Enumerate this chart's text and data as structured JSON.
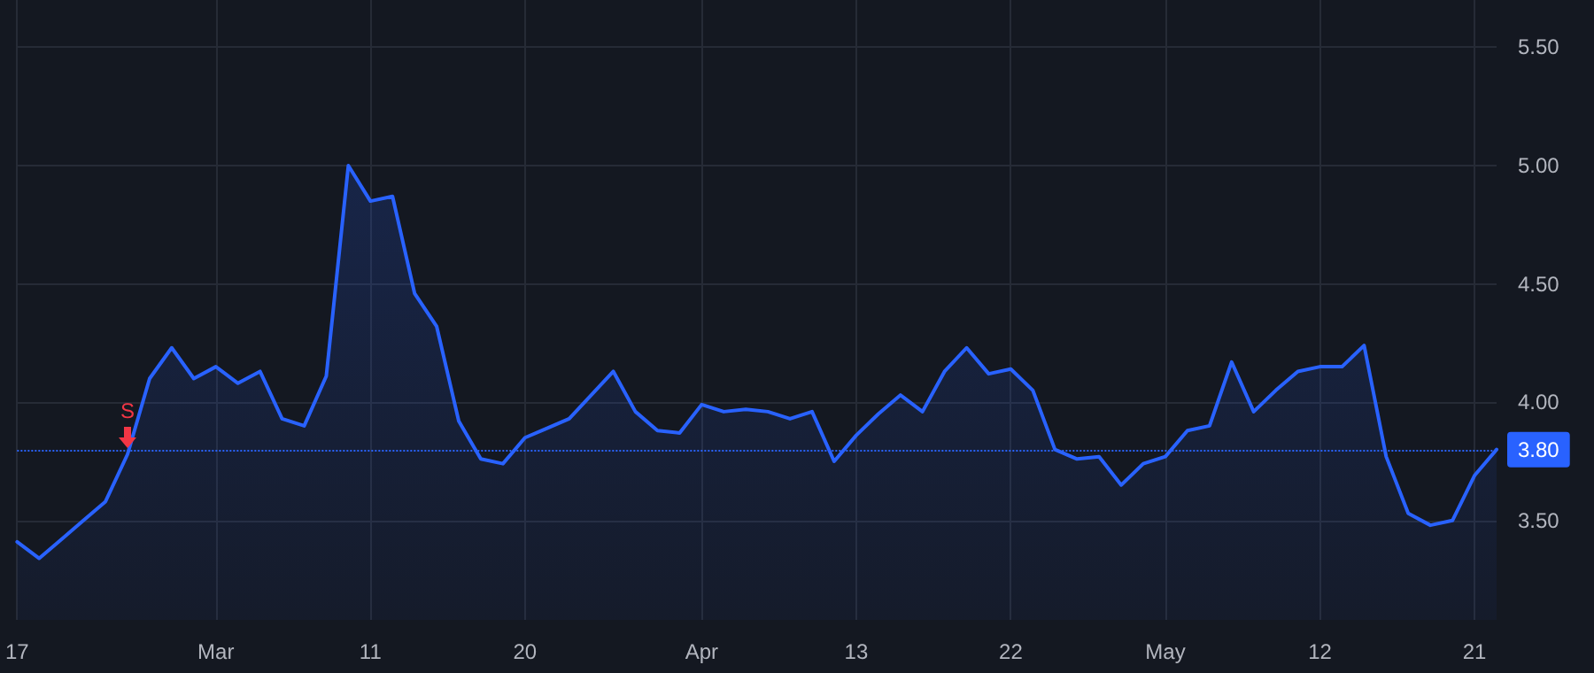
{
  "chart_data": {
    "type": "area",
    "categories": [
      "17",
      null,
      null,
      null,
      null,
      null,
      null,
      null,
      null,
      "Mar",
      null,
      null,
      null,
      null,
      null,
      null,
      "11",
      null,
      null,
      null,
      null,
      null,
      null,
      "20",
      null,
      null,
      null,
      null,
      null,
      null,
      null,
      "Apr",
      null,
      null,
      null,
      null,
      null,
      null,
      "13",
      null,
      null,
      null,
      null,
      null,
      null,
      "22",
      null,
      null,
      null,
      null,
      null,
      null,
      "May",
      null,
      null,
      null,
      null,
      null,
      null,
      "12",
      null,
      null,
      null,
      null,
      null,
      null,
      "21",
      null
    ],
    "series": [
      {
        "color": "#2962ff",
        "values": [
          3.41,
          3.34,
          3.42,
          3.5,
          3.58,
          3.78,
          4.1,
          4.23,
          4.1,
          4.15,
          4.08,
          4.13,
          3.93,
          3.9,
          4.11,
          5.0,
          4.85,
          4.87,
          4.46,
          4.32,
          3.92,
          3.76,
          3.74,
          3.85,
          3.89,
          3.93,
          4.03,
          4.13,
          3.96,
          3.88,
          3.87,
          3.99,
          3.96,
          3.97,
          3.96,
          3.93,
          3.96,
          3.75,
          3.86,
          3.95,
          4.03,
          3.96,
          4.13,
          4.23,
          4.12,
          4.14,
          4.05,
          3.8,
          3.76,
          3.77,
          3.65,
          3.74,
          3.77,
          3.88,
          3.9,
          4.17,
          3.96,
          4.05,
          4.13,
          4.15,
          4.15,
          4.24,
          3.77,
          3.53,
          3.48,
          3.5,
          3.69,
          3.8
        ]
      }
    ],
    "ylim": [
      3.08,
      5.7
    ],
    "yticks": [
      {
        "value": 3.5,
        "label": "3.50"
      },
      {
        "value": 4,
        "label": "4.00"
      },
      {
        "value": 4.5,
        "label": "4.50"
      },
      {
        "value": 5,
        "label": "5.00"
      },
      {
        "value": 5.5,
        "label": "5.50"
      }
    ],
    "ref_lines": [
      {
        "axis": "y",
        "value": 3.8,
        "label": "3.80",
        "color": "#2962ff",
        "line_style": "dotted"
      }
    ],
    "annotations": [
      {
        "text": "S",
        "y": 3.8
      }
    ],
    "grid": true,
    "marker": "none",
    "line_style": "solid"
  }
}
